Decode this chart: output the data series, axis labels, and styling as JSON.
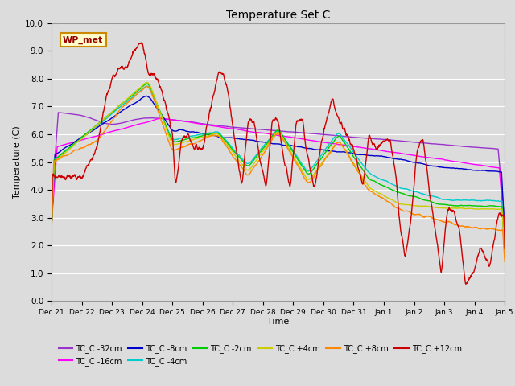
{
  "title": "Temperature Set C",
  "xlabel": "Time",
  "ylabel": "Temperature (C)",
  "ylim": [
    0.0,
    10.0
  ],
  "yticks": [
    0.0,
    1.0,
    2.0,
    3.0,
    4.0,
    5.0,
    6.0,
    7.0,
    8.0,
    9.0,
    10.0
  ],
  "background_color": "#dcdcdc",
  "plot_bg_color": "#dcdcdc",
  "grid_color": "#ffffff",
  "series_order": [
    "TC_C -32cm",
    "TC_C -16cm",
    "TC_C -8cm",
    "TC_C -4cm",
    "TC_C -2cm",
    "TC_C +4cm",
    "TC_C +8cm",
    "TC_C +12cm"
  ],
  "series": {
    "TC_C -32cm": {
      "color": "#9933cc"
    },
    "TC_C -16cm": {
      "color": "#ff00ff"
    },
    "TC_C -8cm": {
      "color": "#0000cc"
    },
    "TC_C -4cm": {
      "color": "#00cccc"
    },
    "TC_C -2cm": {
      "color": "#00cc00"
    },
    "TC_C +4cm": {
      "color": "#cccc00"
    },
    "TC_C +8cm": {
      "color": "#ff8800"
    },
    "TC_C +12cm": {
      "color": "#cc0000"
    }
  },
  "xtick_labels": [
    "Dec 21",
    "Dec 22",
    "Dec 23",
    "Dec 24",
    "Dec 25",
    "Dec 26",
    "Dec 27",
    "Dec 28",
    "Dec 29",
    "Dec 30",
    "Dec 31",
    "Jan 1",
    "Jan 2",
    "Jan 3",
    "Jan 4",
    "Jan 5"
  ],
  "legend_row1": [
    "TC_C -32cm",
    "TC_C -16cm",
    "TC_C -8cm",
    "TC_C -4cm",
    "TC_C -2cm",
    "TC_C +4cm"
  ],
  "legend_row2": [
    "TC_C +8cm",
    "TC_C +12cm"
  ],
  "wp_met_box": {
    "text": "WP_met",
    "bg": "#ffffcc",
    "border": "#cc8800"
  }
}
